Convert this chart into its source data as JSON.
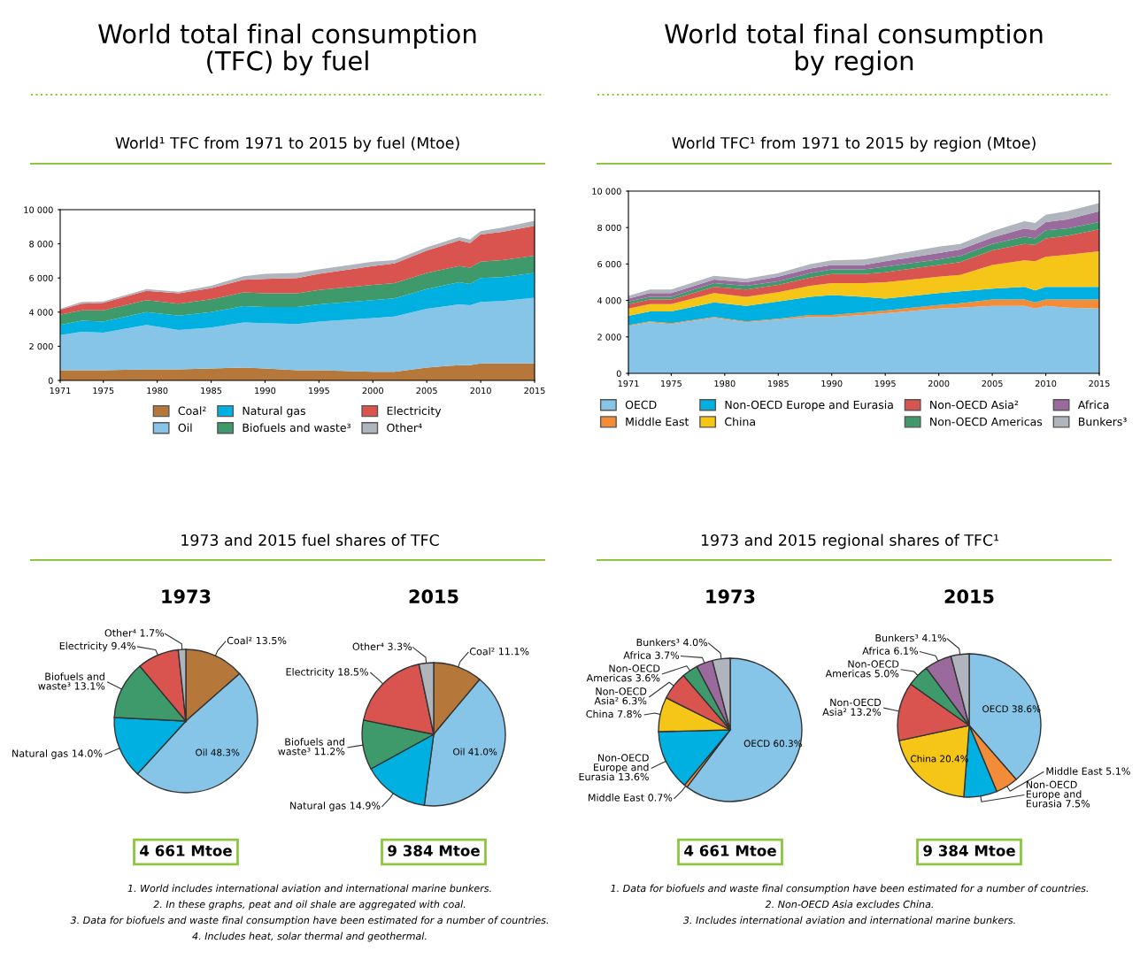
{
  "chart_data": [
    {
      "type": "area",
      "stacked": true,
      "title": "World total final consumption\n(TFC) by fuel",
      "subtitle": "World¹ TFC from 1971 to 2015 by fuel (Mtoe)",
      "x": [
        1971,
        1973,
        1975,
        1979,
        1982,
        1985,
        1988,
        1990,
        1993,
        1995,
        2000,
        2002,
        2005,
        2008,
        2009,
        2010,
        2012,
        2015
      ],
      "series": [
        {
          "name": "Coal²",
          "color": "#b5773a",
          "values": [
            600,
            600,
            600,
            650,
            650,
            700,
            750,
            700,
            600,
            600,
            500,
            500,
            750,
            900,
            900,
            1000,
            1000,
            1000
          ]
        },
        {
          "name": "Oil",
          "color": "#86c5e8",
          "values": [
            2050,
            2250,
            2200,
            2600,
            2300,
            2400,
            2650,
            2650,
            2700,
            2850,
            3150,
            3250,
            3450,
            3550,
            3500,
            3600,
            3650,
            3850
          ]
        },
        {
          "name": "Natural gas",
          "color": "#00b0e0",
          "values": [
            600,
            650,
            650,
            750,
            850,
            900,
            950,
            950,
            1000,
            1000,
            1050,
            1050,
            1150,
            1300,
            1250,
            1400,
            1400,
            1450
          ]
        },
        {
          "name": "Biofuels and waste³",
          "color": "#3f9a6b",
          "values": [
            600,
            600,
            650,
            700,
            700,
            750,
            800,
            800,
            800,
            850,
            900,
            900,
            950,
            950,
            950,
            950,
            1000,
            1000
          ]
        },
        {
          "name": "Electricity",
          "color": "#d9534f",
          "values": [
            300,
            400,
            450,
            550,
            600,
            650,
            750,
            850,
            900,
            950,
            1100,
            1150,
            1300,
            1500,
            1450,
            1600,
            1650,
            1750
          ]
        },
        {
          "name": "Other⁴",
          "color": "#b0b4bc",
          "values": [
            50,
            100,
            70,
            100,
            100,
            150,
            200,
            300,
            300,
            250,
            250,
            200,
            200,
            200,
            200,
            200,
            250,
            300
          ]
        }
      ],
      "xlim": [
        1971,
        2015
      ],
      "xticks": [
        1971,
        1975,
        1980,
        1985,
        1990,
        1995,
        2000,
        2005,
        2010,
        2015
      ],
      "ylim": [
        0,
        10000
      ],
      "yticks": [
        0,
        {
          "value": 2000,
          "label": "2 000"
        },
        {
          "value": 4000,
          "label": "4 000"
        },
        {
          "value": 6000,
          "label": "6 000"
        },
        {
          "value": 8000,
          "label": "8 000"
        },
        {
          "value": 10000,
          "label": "10 000"
        }
      ],
      "legend": "bottom"
    },
    {
      "type": "area",
      "stacked": true,
      "title": "World total final consumption\nby region",
      "subtitle": "World TFC¹ from 1971 to 2015 by region (Mtoe)",
      "x": [
        1971,
        1973,
        1975,
        1979,
        1982,
        1985,
        1988,
        1990,
        1993,
        1995,
        2000,
        2002,
        2005,
        2008,
        2009,
        2010,
        2012,
        2015
      ],
      "series": [
        {
          "name": "OECD",
          "color": "#86c5e8",
          "values": [
            2600,
            2800,
            2700,
            3050,
            2800,
            2950,
            3100,
            3100,
            3200,
            3300,
            3550,
            3600,
            3700,
            3700,
            3550,
            3700,
            3600,
            3550
          ]
        },
        {
          "name": "Middle East",
          "color": "#f28c38",
          "values": [
            50,
            50,
            50,
            50,
            50,
            50,
            100,
            100,
            150,
            150,
            200,
            250,
            350,
            350,
            350,
            350,
            450,
            500
          ]
        },
        {
          "name": "Non-OECD Europe and Eurasia",
          "color": "#00b0e0",
          "values": [
            500,
            550,
            650,
            800,
            850,
            950,
            1000,
            1100,
            850,
            650,
            650,
            650,
            600,
            700,
            650,
            700,
            700,
            700
          ]
        },
        {
          "name": "China",
          "color": "#f5c518",
          "values": [
            400,
            400,
            400,
            500,
            500,
            500,
            600,
            650,
            750,
            900,
            900,
            900,
            1300,
            1450,
            1600,
            1650,
            1750,
            1950
          ]
        },
        {
          "name": "Non-OECD Asia²",
          "color": "#d9534f",
          "values": [
            250,
            250,
            250,
            350,
            400,
            400,
            450,
            500,
            500,
            550,
            650,
            700,
            800,
            900,
            900,
            1000,
            1050,
            1200
          ]
        },
        {
          "name": "Non-OECD Americas",
          "color": "#3f9a6b",
          "values": [
            150,
            150,
            150,
            200,
            200,
            200,
            250,
            250,
            250,
            300,
            300,
            350,
            350,
            400,
            350,
            450,
            400,
            400
          ]
        },
        {
          "name": "Africa",
          "color": "#9b6a9d",
          "values": [
            150,
            200,
            200,
            200,
            200,
            250,
            250,
            250,
            250,
            300,
            350,
            350,
            350,
            450,
            450,
            450,
            500,
            600
          ]
        },
        {
          "name": "Bunkers³",
          "color": "#b0b4bc",
          "values": [
            150,
            200,
            200,
            200,
            200,
            200,
            250,
            250,
            300,
            300,
            350,
            300,
            350,
            400,
            400,
            400,
            450,
            450
          ]
        }
      ],
      "xlim": [
        1971,
        2015
      ],
      "xticks": [
        1971,
        1975,
        1980,
        1985,
        1990,
        1995,
        2000,
        2005,
        2010,
        2015
      ],
      "ylim": [
        0,
        10000
      ],
      "yticks": [
        0,
        {
          "value": 2000,
          "label": "2 000"
        },
        {
          "value": 4000,
          "label": "4 000"
        },
        {
          "value": 6000,
          "label": "6 000"
        },
        {
          "value": 8000,
          "label": "8 000"
        },
        {
          "value": 10000,
          "label": "10 000"
        }
      ],
      "legend": "bottom"
    },
    {
      "type": "pie",
      "title": "1973",
      "subtitle": "1973 and 2015 fuel shares of TFC",
      "categories": [
        "Coal²",
        "Oil",
        "Natural gas",
        "Biofuels and\nwaste³",
        "Electricity",
        "Other⁴"
      ],
      "values": [
        13.5,
        48.3,
        14.0,
        13.1,
        9.4,
        1.7
      ],
      "value_labels": [
        "13.5%",
        "48.3%",
        "14.0%",
        "13.1%",
        "9.4%",
        "1.7%"
      ],
      "colors": [
        "#b5773a",
        "#86c5e8",
        "#00b0e0",
        "#3f9a6b",
        "#d9534f",
        "#b0b4bc"
      ],
      "annotations": [
        "4 661 Mtoe"
      ]
    },
    {
      "type": "pie",
      "title": "2015",
      "categories": [
        "Coal²",
        "Oil",
        "Natural gas",
        "Biofuels and\nwaste³",
        "Electricity",
        "Other⁴"
      ],
      "values": [
        11.1,
        41.0,
        14.9,
        11.2,
        18.5,
        3.3
      ],
      "value_labels": [
        "11.1%",
        "41.0%",
        "14.9%",
        "11.2%",
        "18.5%",
        "3.3%"
      ],
      "colors": [
        "#b5773a",
        "#86c5e8",
        "#00b0e0",
        "#3f9a6b",
        "#d9534f",
        "#b0b4bc"
      ],
      "annotations": [
        "9 384 Mtoe",
        "1. World includes international aviation and international marine bunkers.",
        "2. In these graphs, peat and oil shale are aggregated with coal.",
        "3. Data for biofuels and waste final consumption have been estimated for a number of countries.",
        "4. Includes heat, solar thermal and geothermal."
      ]
    },
    {
      "type": "pie",
      "title": "1973",
      "subtitle": "1973 and 2015 regional shares of TFC¹",
      "categories": [
        "OECD",
        "Middle East",
        "Non-OECD\nEurope and\nEurasia",
        "China",
        "Non-OECD\nAsia²",
        "Non-OECD\nAmericas",
        "Africa",
        "Bunkers³"
      ],
      "values": [
        60.3,
        0.7,
        13.6,
        7.8,
        6.3,
        3.6,
        3.7,
        4.0
      ],
      "value_labels": [
        "60.3%",
        "0.7%",
        "13.6%",
        "7.8%",
        "6.3%",
        "3.6%",
        "3.7%",
        "4.0%"
      ],
      "colors": [
        "#86c5e8",
        "#f28c38",
        "#00b0e0",
        "#f5c518",
        "#d9534f",
        "#3f9a6b",
        "#9b6a9d",
        "#b0b4bc"
      ],
      "annotations": [
        "4 661 Mtoe"
      ]
    },
    {
      "type": "pie",
      "title": "2015",
      "categories": [
        "OECD",
        "Middle East",
        "Non-OECD\nEurope and\nEurasia",
        "China",
        "Non-OECD\nAsia²",
        "Non-OECD\nAmericas",
        "Africa",
        "Bunkers³"
      ],
      "values": [
        38.6,
        5.1,
        7.5,
        20.4,
        13.2,
        5.0,
        6.1,
        4.1
      ],
      "value_labels": [
        "38.6%",
        "5.1%",
        "7.5%",
        "20.4%",
        "13.2%",
        "5.0%",
        "6.1%",
        "4.1%"
      ],
      "colors": [
        "#86c5e8",
        "#f28c38",
        "#00b0e0",
        "#f5c518",
        "#d9534f",
        "#3f9a6b",
        "#9b6a9d",
        "#b0b4bc"
      ],
      "annotations": [
        "9 384 Mtoe",
        "1. Data for biofuels and waste final consumption have been estimated for a number of countries.",
        "2. Non-OECD Asia excludes China.",
        "3. Includes international aviation and international marine bunkers."
      ]
    }
  ]
}
